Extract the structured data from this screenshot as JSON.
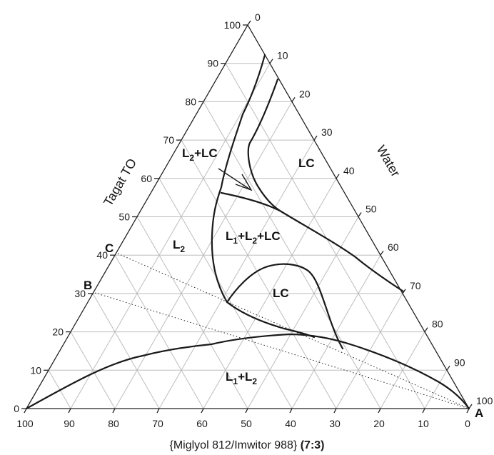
{
  "diagram": {
    "type": "ternary-phase-diagram",
    "left_axis_title": "Tagat TO",
    "right_axis_title": "Water",
    "bottom_axis_title": "{Miglyol 812/Imwitor 988}",
    "bottom_axis_ratio": "(7:3)",
    "left_ticks": [
      "0",
      "10",
      "20",
      "30",
      "40",
      "50",
      "60",
      "70",
      "80",
      "90",
      "100"
    ],
    "right_ticks": [
      "0",
      "10",
      "20",
      "30",
      "40",
      "50",
      "60",
      "70",
      "80",
      "90",
      "100"
    ],
    "bottom_ticks": [
      "100",
      "90",
      "80",
      "70",
      "60",
      "50",
      "40",
      "30",
      "20",
      "10",
      "0"
    ],
    "vertex_labels": {
      "A": "A",
      "B": "B",
      "C": "C"
    },
    "region_labels": {
      "l2_lc": {
        "main": "L",
        "sub": "2",
        "tail": "+LC"
      },
      "lc_upper": "LC",
      "l2": {
        "main": "L",
        "sub": "2"
      },
      "l1_l2_lc": {
        "a": "L",
        "a_sub": "1",
        "b": "+L",
        "b_sub": "2",
        "c": "+LC"
      },
      "lc_lower": "LC",
      "l1_l2": {
        "a": "L",
        "a_sub": "1",
        "b": "+L",
        "b_sub": "2"
      }
    }
  }
}
